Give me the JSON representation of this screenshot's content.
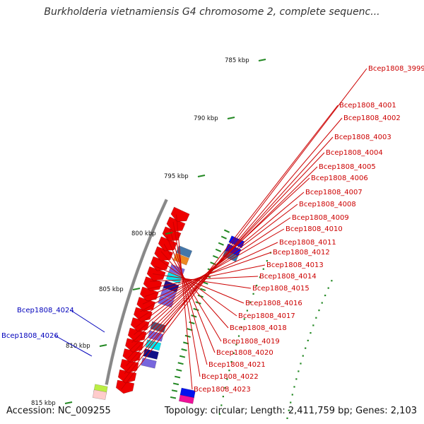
{
  "title": "Burkholderia vietnamiensis G4 chromosome 2, complete sequenc...",
  "footer": {
    "accession": "Accession: NC_009255",
    "summary": "Topology: circular; Length: 2,411,759 bp; Genes: 2,103"
  },
  "colors": {
    "backbone": "#888888",
    "gene_red": "#ee0000",
    "label_red": "#cc0000",
    "label_blue": "#0000bb",
    "tick_green": "#228822",
    "purple": "#7766dd",
    "cyan": "#00e5ee",
    "blue": "#0011ee"
  },
  "ticks": [
    {
      "label": "785 kbp"
    },
    {
      "label": "790 kbp"
    },
    {
      "label": "795 kbp"
    },
    {
      "label": "800 kbp"
    },
    {
      "label": "805 kbp"
    },
    {
      "label": "810 kbp"
    },
    {
      "label": "815 kbp"
    }
  ],
  "gene_labels": [
    {
      "name": "Bcep1808_3999"
    },
    {
      "name": "Bcep1808_4001"
    },
    {
      "name": "Bcep1808_4002"
    },
    {
      "name": "Bcep1808_4003"
    },
    {
      "name": "Bcep1808_4004"
    },
    {
      "name": "Bcep1808_4005"
    },
    {
      "name": "Bcep1808_4006"
    },
    {
      "name": "Bcep1808_4007"
    },
    {
      "name": "Bcep1808_4008"
    },
    {
      "name": "Bcep1808_4009"
    },
    {
      "name": "Bcep1808_4010"
    },
    {
      "name": "Bcep1808_4011"
    },
    {
      "name": "Bcep1808_4012"
    },
    {
      "name": "Bcep1808_4013"
    },
    {
      "name": "Bcep1808_4014"
    },
    {
      "name": "Bcep1808_4015"
    },
    {
      "name": "Bcep1808_4016"
    },
    {
      "name": "Bcep1808_4017"
    },
    {
      "name": "Bcep1808_4018"
    },
    {
      "name": "Bcep1808_4019"
    },
    {
      "name": "Bcep1808_4020"
    },
    {
      "name": "Bcep1808_4021"
    },
    {
      "name": "Bcep1808_4022"
    },
    {
      "name": "Bcep1808_4023"
    },
    {
      "name": "Bcep1808_4024"
    },
    {
      "name": "Bcep1808_4026"
    }
  ]
}
